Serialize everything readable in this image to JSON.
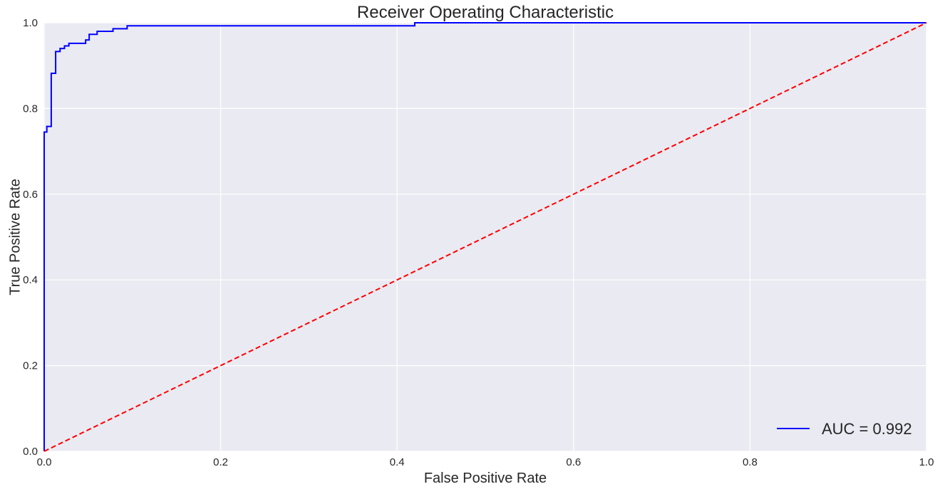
{
  "chart_data": {
    "type": "line",
    "title": "Receiver Operating Characteristic",
    "xlabel": "False Positive Rate",
    "ylabel": "True Positive Rate",
    "xlim": [
      0.0,
      1.0
    ],
    "ylim": [
      0.0,
      1.0
    ],
    "x_ticks": [
      "0.0",
      "0.2",
      "0.4",
      "0.6",
      "0.8",
      "1.0"
    ],
    "y_ticks": [
      "0.0",
      "0.2",
      "0.4",
      "0.6",
      "0.8",
      "1.0"
    ],
    "grid": true,
    "legend_position": "lower right",
    "background_color": "#eaeaf2",
    "series": [
      {
        "name": "AUC = 0.992",
        "color": "#0000ff",
        "style": "solid",
        "x": [
          0.0,
          0.0,
          0.003,
          0.003,
          0.008,
          0.008,
          0.013,
          0.013,
          0.018,
          0.018,
          0.023,
          0.023,
          0.028,
          0.028,
          0.047,
          0.047,
          0.051,
          0.051,
          0.06,
          0.06,
          0.078,
          0.078,
          0.094,
          0.094,
          0.42,
          0.42,
          1.0
        ],
        "y": [
          0.0,
          0.745,
          0.745,
          0.758,
          0.758,
          0.882,
          0.882,
          0.933,
          0.933,
          0.94,
          0.94,
          0.946,
          0.946,
          0.952,
          0.952,
          0.96,
          0.96,
          0.973,
          0.973,
          0.98,
          0.98,
          0.986,
          0.986,
          0.993,
          0.993,
          1.0,
          1.0
        ]
      },
      {
        "color": "#ff0000",
        "style": "dashed",
        "x": [
          0.0,
          1.0
        ],
        "y": [
          0.0,
          1.0
        ]
      }
    ]
  }
}
